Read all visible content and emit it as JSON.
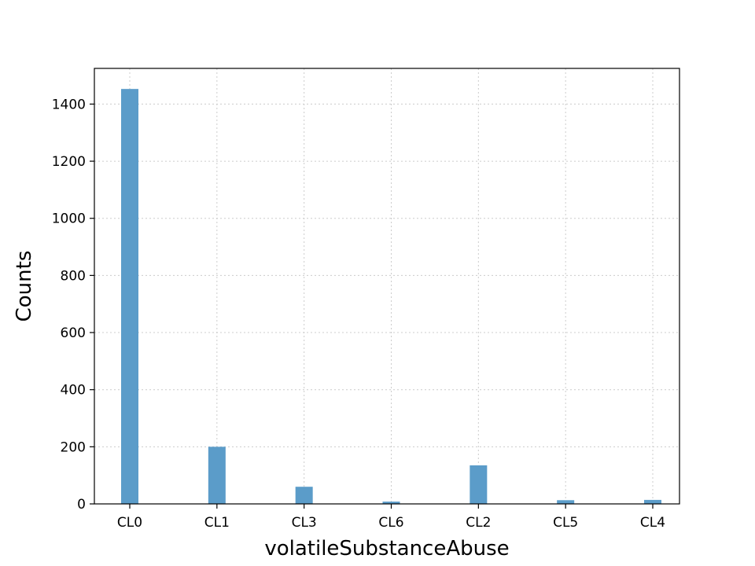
{
  "chart_data": {
    "type": "bar",
    "title": "",
    "xlabel": "volatileSubstanceAbuse",
    "ylabel": "Counts",
    "categories": [
      "CL0",
      "CL1",
      "CL3",
      "CL6",
      "CL2",
      "CL5",
      "CL4"
    ],
    "values": [
      1453,
      200,
      60,
      8,
      135,
      13,
      14
    ],
    "ylim": [
      0,
      1525
    ],
    "yticks": [
      0,
      200,
      400,
      600,
      800,
      1000,
      1200,
      1400
    ],
    "grid": true,
    "bar_color": "#5b9cc9"
  }
}
